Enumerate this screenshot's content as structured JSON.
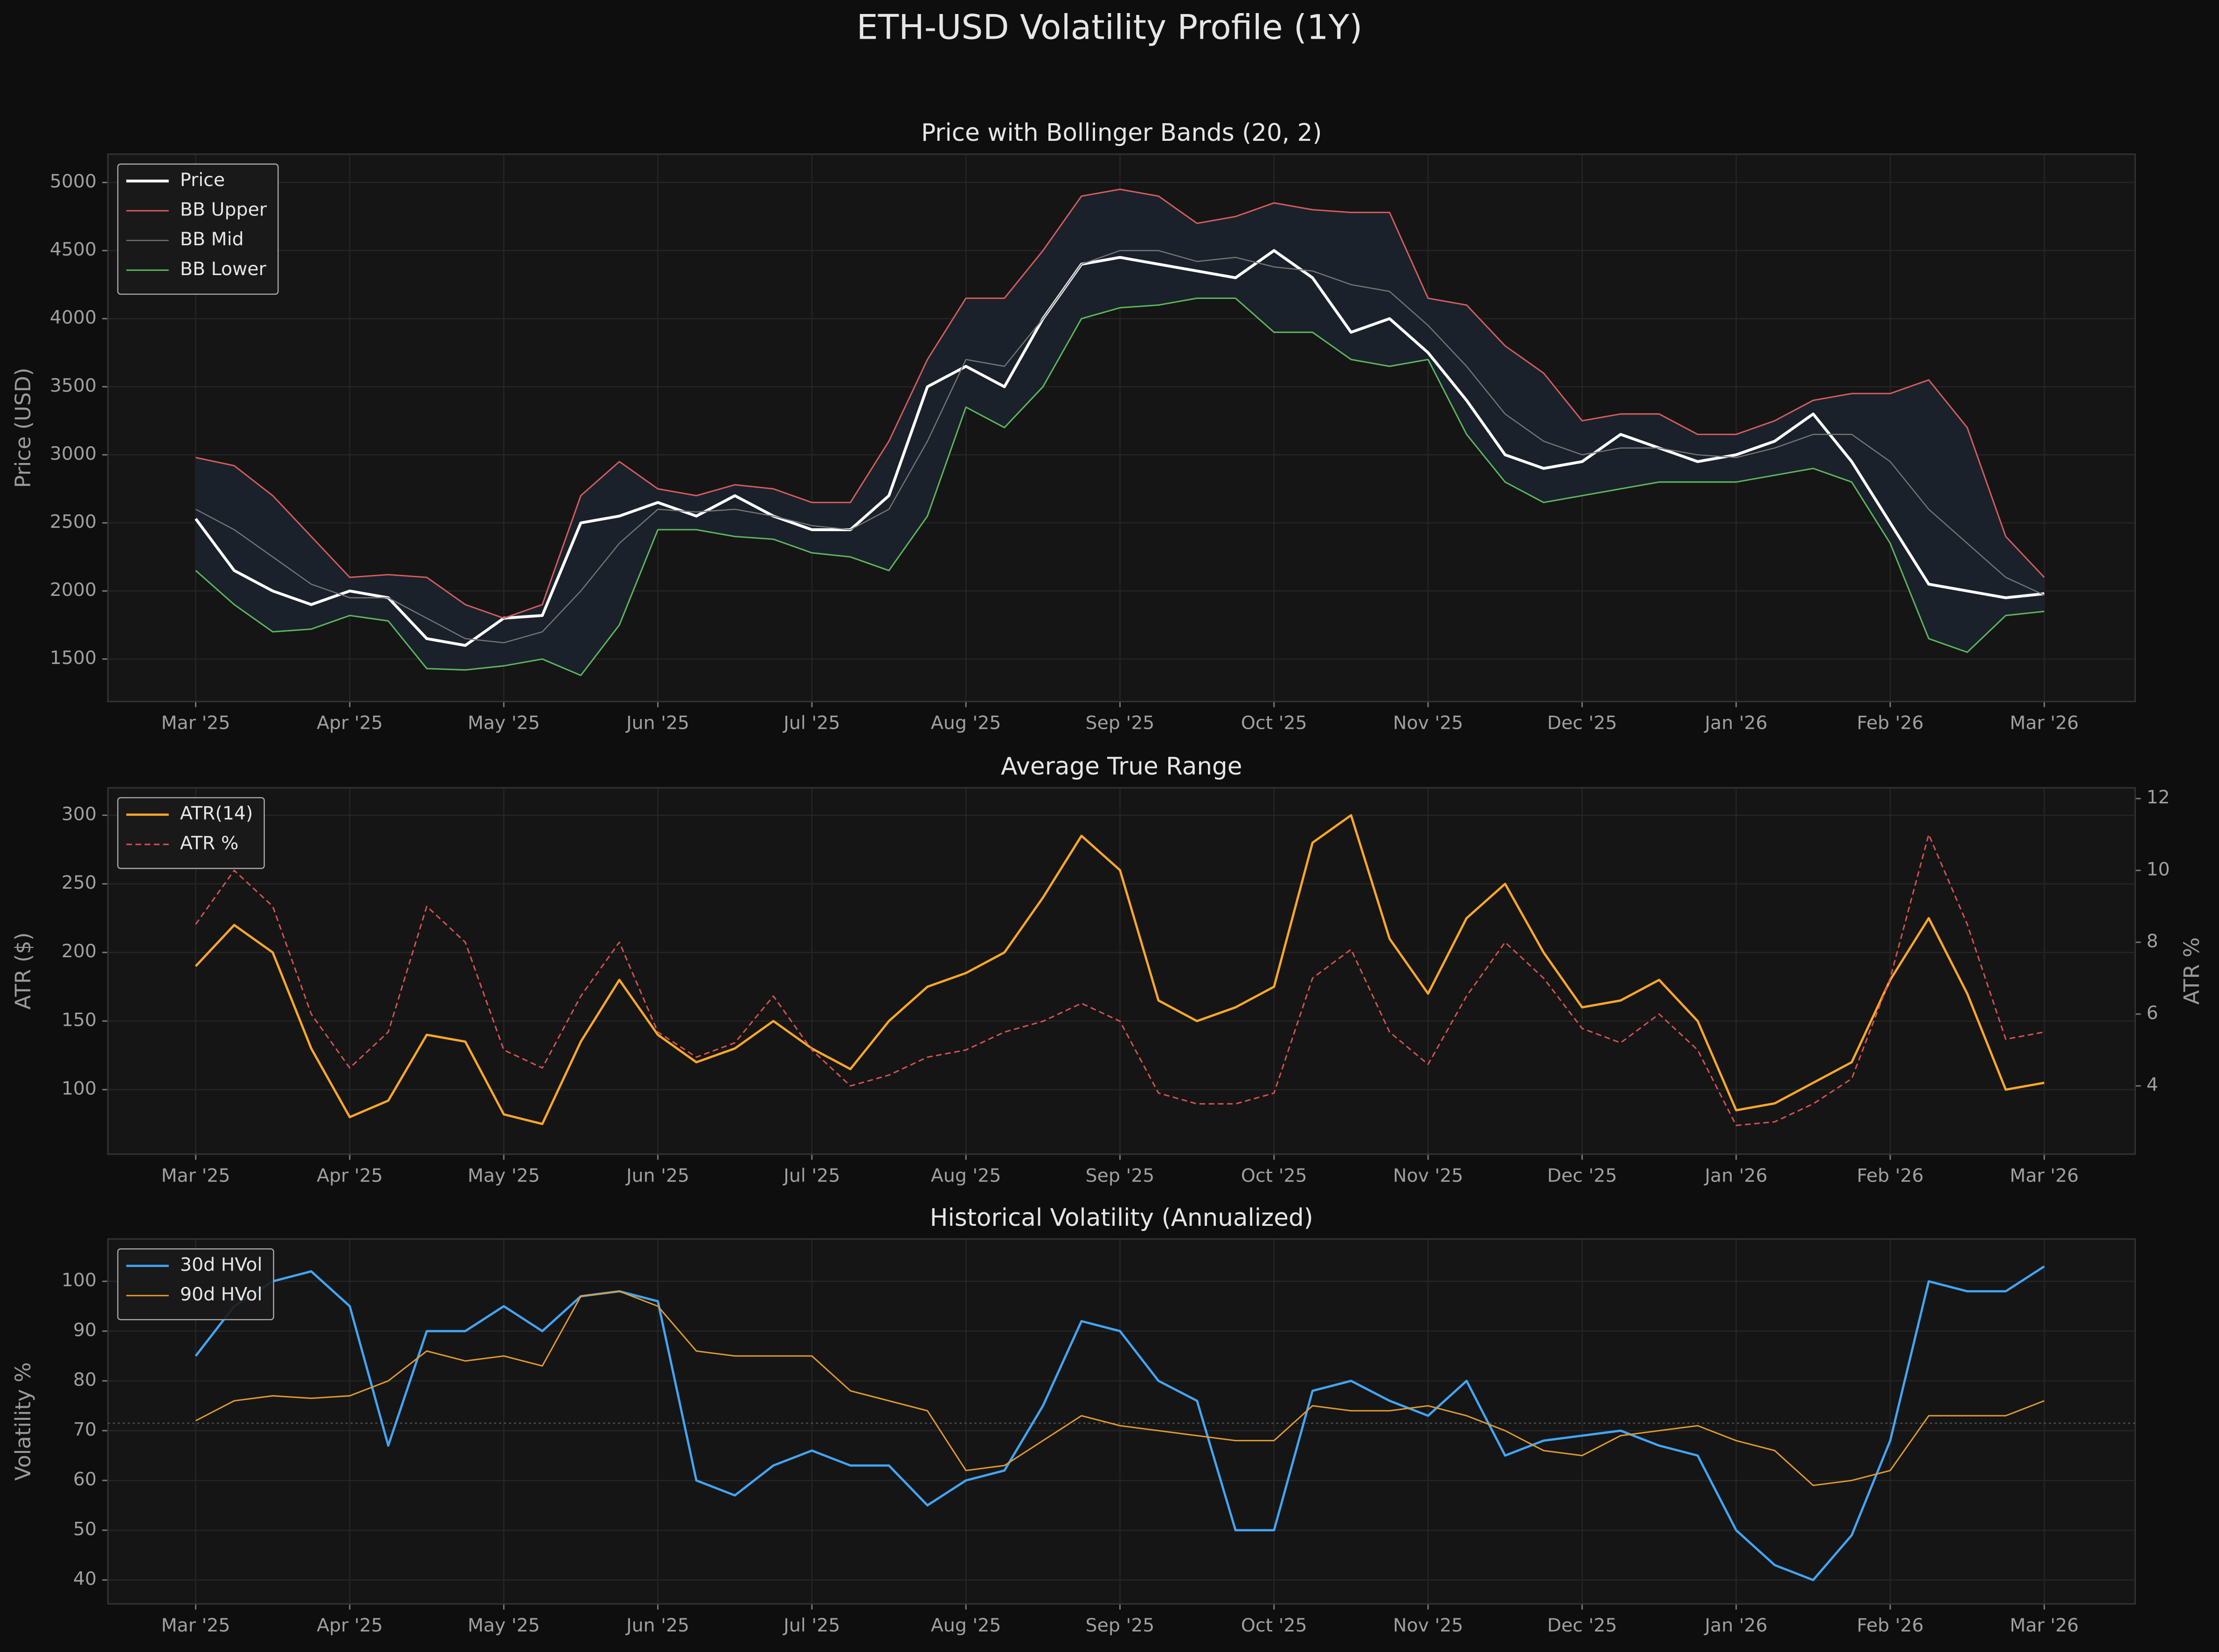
{
  "title": "ETH-USD Volatility Profile (1Y)",
  "chart_data": [
    {
      "type": "line",
      "title": "Price with Bollinger Bands (20, 2)",
      "ylabel": "Price (USD)",
      "x": [
        0,
        0.25,
        0.5,
        0.75,
        1,
        1.25,
        1.5,
        1.75,
        2,
        2.25,
        2.5,
        2.75,
        3,
        3.25,
        3.5,
        3.75,
        4,
        4.25,
        4.5,
        4.75,
        5,
        5.25,
        5.5,
        5.75,
        6,
        6.25,
        6.5,
        6.75,
        7,
        7.25,
        7.5,
        7.75,
        8,
        8.25,
        8.5,
        8.75,
        9,
        9.25,
        9.5,
        9.75,
        10,
        10.25,
        10.5,
        10.75,
        11,
        11.25,
        11.5,
        11.75,
        12
      ],
      "xlim": [
        -0.57,
        12.59
      ],
      "xticks": [
        {
          "value": 0,
          "label": "Mar '25"
        },
        {
          "value": 1,
          "label": "Apr '25"
        },
        {
          "value": 2,
          "label": "May '25"
        },
        {
          "value": 3,
          "label": "Jun '25"
        },
        {
          "value": 4,
          "label": "Jul '25"
        },
        {
          "value": 5,
          "label": "Aug '25"
        },
        {
          "value": 6,
          "label": "Sep '25"
        },
        {
          "value": 7,
          "label": "Oct '25"
        },
        {
          "value": 8,
          "label": "Nov '25"
        },
        {
          "value": 9,
          "label": "Dec '25"
        },
        {
          "value": 10,
          "label": "Jan '26"
        },
        {
          "value": 11,
          "label": "Feb '26"
        },
        {
          "value": 12,
          "label": "Mar '26"
        }
      ],
      "ylim": [
        1188,
        5208
      ],
      "yticks": [
        1500,
        2000,
        2500,
        3000,
        3500,
        4000,
        4500,
        5000
      ],
      "grid": true,
      "legend": "upper left",
      "band": {
        "between": [
          1,
          3
        ],
        "color": "#1a212a"
      },
      "series": [
        {
          "name": "Price",
          "color": "#ffffff",
          "line_width": 2,
          "values": [
            2530,
            2150,
            2000,
            1900,
            2000,
            1950,
            1650,
            1600,
            1800,
            1820,
            2500,
            2550,
            2650,
            2550,
            2700,
            2550,
            2450,
            2450,
            2700,
            3500,
            3650,
            3500,
            4000,
            4400,
            4450,
            4400,
            4350,
            4300,
            4500,
            4300,
            3900,
            4000,
            3750,
            3400,
            3000,
            2900,
            2950,
            3150,
            3050,
            2950,
            3000,
            3100,
            3300,
            2950,
            2500,
            2050,
            2000,
            1950,
            1980
          ]
        },
        {
          "name": "BB Upper",
          "color": "#d65c5c",
          "line_width": 1,
          "values": [
            2980,
            2920,
            2700,
            2400,
            2100,
            2120,
            2100,
            1900,
            1800,
            1900,
            2700,
            2950,
            2750,
            2700,
            2780,
            2750,
            2650,
            2650,
            3100,
            3700,
            4150,
            4150,
            4500,
            4900,
            4950,
            4900,
            4700,
            4750,
            4850,
            4800,
            4780,
            4780,
            4150,
            4100,
            3800,
            3600,
            3250,
            3300,
            3300,
            3150,
            3150,
            3250,
            3400,
            3450,
            3450,
            3550,
            3200,
            2400,
            2100
          ]
        },
        {
          "name": "BB Mid",
          "color": "#777777",
          "line_width": 0.8,
          "values": [
            2600,
            2450,
            2250,
            2050,
            1950,
            1950,
            1800,
            1650,
            1620,
            1700,
            2000,
            2350,
            2600,
            2580,
            2600,
            2550,
            2480,
            2450,
            2600,
            3100,
            3700,
            3650,
            4000,
            4400,
            4500,
            4500,
            4420,
            4450,
            4380,
            4350,
            4250,
            4200,
            3950,
            3650,
            3300,
            3100,
            3000,
            3050,
            3050,
            3000,
            2980,
            3050,
            3150,
            3150,
            2950,
            2600,
            2350,
            2100,
            1970
          ]
        },
        {
          "name": "BB Lower",
          "color": "#5cb85c",
          "line_width": 1,
          "values": [
            2150,
            1900,
            1700,
            1720,
            1820,
            1780,
            1430,
            1420,
            1450,
            1500,
            1380,
            1750,
            2450,
            2450,
            2400,
            2380,
            2280,
            2250,
            2150,
            2550,
            3350,
            3200,
            3500,
            4000,
            4080,
            4100,
            4150,
            4150,
            3900,
            3900,
            3700,
            3650,
            3700,
            3150,
            2800,
            2650,
            2700,
            2750,
            2800,
            2800,
            2800,
            2850,
            2900,
            2800,
            2350,
            1650,
            1550,
            1820,
            1850
          ]
        }
      ]
    },
    {
      "type": "line",
      "title": "Average True Range",
      "ylabel": "ATR ($)",
      "y2label": "ATR %",
      "x": [
        0,
        0.25,
        0.5,
        0.75,
        1,
        1.25,
        1.5,
        1.75,
        2,
        2.25,
        2.5,
        2.75,
        3,
        3.25,
        3.5,
        3.75,
        4,
        4.25,
        4.5,
        4.75,
        5,
        5.25,
        5.5,
        5.75,
        6,
        6.25,
        6.5,
        6.75,
        7,
        7.25,
        7.5,
        7.75,
        8,
        8.25,
        8.5,
        8.75,
        9,
        9.25,
        9.5,
        9.75,
        10,
        10.25,
        10.5,
        10.75,
        11,
        11.25,
        11.5,
        11.75,
        12
      ],
      "xlim": [
        -0.57,
        12.59
      ],
      "xticks": [
        {
          "value": 0,
          "label": "Mar '25"
        },
        {
          "value": 1,
          "label": "Apr '25"
        },
        {
          "value": 2,
          "label": "May '25"
        },
        {
          "value": 3,
          "label": "Jun '25"
        },
        {
          "value": 4,
          "label": "Jul '25"
        },
        {
          "value": 5,
          "label": "Aug '25"
        },
        {
          "value": 6,
          "label": "Sep '25"
        },
        {
          "value": 7,
          "label": "Oct '25"
        },
        {
          "value": 8,
          "label": "Nov '25"
        },
        {
          "value": 9,
          "label": "Dec '25"
        },
        {
          "value": 10,
          "label": "Jan '26"
        },
        {
          "value": 11,
          "label": "Feb '26"
        },
        {
          "value": 12,
          "label": "Mar '26"
        }
      ],
      "ylim": [
        53,
        320
      ],
      "yticks": [
        100,
        150,
        200,
        250,
        300
      ],
      "y2lim": [
        2.1,
        12.3
      ],
      "y2ticks": [
        4,
        6,
        8,
        10,
        12
      ],
      "grid": true,
      "legend": "upper left",
      "series": [
        {
          "name": "ATR(14)",
          "color": "#ffa726",
          "line_width": 1.6,
          "values": [
            190,
            220,
            200,
            130,
            80,
            92,
            140,
            135,
            82,
            75,
            135,
            180,
            140,
            120,
            130,
            150,
            130,
            115,
            150,
            175,
            185,
            200,
            240,
            285,
            260,
            165,
            150,
            160,
            175,
            280,
            300,
            210,
            170,
            225,
            250,
            200,
            160,
            165,
            180,
            150,
            85,
            90,
            105,
            120,
            180,
            225,
            170,
            100,
            105
          ]
        },
        {
          "name": "ATR %",
          "color": "#d9534f",
          "line_width": 1,
          "dash": true,
          "axis": "y2",
          "values": [
            8.5,
            10,
            9,
            6,
            4.5,
            5.5,
            9,
            8,
            5,
            4.5,
            6.5,
            8,
            5.5,
            4.8,
            5.2,
            6.5,
            5,
            4,
            4.3,
            4.8,
            5,
            5.5,
            5.8,
            6.3,
            5.8,
            3.8,
            3.5,
            3.5,
            3.8,
            7,
            7.8,
            5.5,
            4.6,
            6.5,
            8,
            7,
            5.6,
            5.2,
            6,
            5,
            2.9,
            3,
            3.5,
            4.2,
            7,
            11,
            8.5,
            5.3,
            5.5
          ]
        }
      ]
    },
    {
      "type": "line",
      "title": "Historical Volatility (Annualized)",
      "ylabel": "Volatility %",
      "x": [
        0,
        0.25,
        0.5,
        0.75,
        1,
        1.25,
        1.5,
        1.75,
        2,
        2.25,
        2.5,
        2.75,
        3,
        3.25,
        3.5,
        3.75,
        4,
        4.25,
        4.5,
        4.75,
        5,
        5.25,
        5.5,
        5.75,
        6,
        6.25,
        6.5,
        6.75,
        7,
        7.25,
        7.5,
        7.75,
        8,
        8.25,
        8.5,
        8.75,
        9,
        9.25,
        9.5,
        9.75,
        10,
        10.25,
        10.5,
        10.75,
        11,
        11.25,
        11.5,
        11.75,
        12
      ],
      "xlim": [
        -0.57,
        12.59
      ],
      "xticks": [
        {
          "value": 0,
          "label": "Mar '25"
        },
        {
          "value": 1,
          "label": "Apr '25"
        },
        {
          "value": 2,
          "label": "May '25"
        },
        {
          "value": 3,
          "label": "Jun '25"
        },
        {
          "value": 4,
          "label": "Jul '25"
        },
        {
          "value": 5,
          "label": "Aug '25"
        },
        {
          "value": 6,
          "label": "Sep '25"
        },
        {
          "value": 7,
          "label": "Oct '25"
        },
        {
          "value": 8,
          "label": "Nov '25"
        },
        {
          "value": 9,
          "label": "Dec '25"
        },
        {
          "value": 10,
          "label": "Jan '26"
        },
        {
          "value": 11,
          "label": "Feb '26"
        },
        {
          "value": 12,
          "label": "Mar '26"
        }
      ],
      "ylim": [
        35.2,
        108.5
      ],
      "yticks": [
        40,
        50,
        60,
        70,
        80,
        90,
        100
      ],
      "grid": true,
      "legend": "upper left",
      "hline": 71.5,
      "series": [
        {
          "name": "30d HVol",
          "color": "#42a5f5",
          "line_width": 1.6,
          "values": [
            85,
            95,
            100,
            102,
            95,
            67,
            90,
            90,
            95,
            90,
            97,
            98,
            96,
            60,
            57,
            63,
            66,
            63,
            63,
            55,
            60,
            62,
            75,
            92,
            90,
            80,
            76,
            50,
            50,
            78,
            80,
            76,
            73,
            80,
            65,
            68,
            69,
            70,
            67,
            65,
            50,
            43,
            40,
            49,
            68,
            100,
            98,
            98,
            103
          ]
        },
        {
          "name": "90d HVol",
          "color": "#e09a2f",
          "line_width": 1,
          "values": [
            72,
            76,
            77,
            76.5,
            77,
            80,
            86,
            84,
            85,
            83,
            97,
            98,
            95,
            86,
            85,
            85,
            85,
            78,
            76,
            74,
            62,
            63,
            68,
            73,
            71,
            70,
            69,
            68,
            68,
            75,
            74,
            74,
            75,
            73,
            70,
            66,
            65,
            69,
            70,
            71,
            68,
            66,
            59,
            60,
            62,
            73,
            73,
            73,
            76
          ]
        }
      ]
    }
  ]
}
